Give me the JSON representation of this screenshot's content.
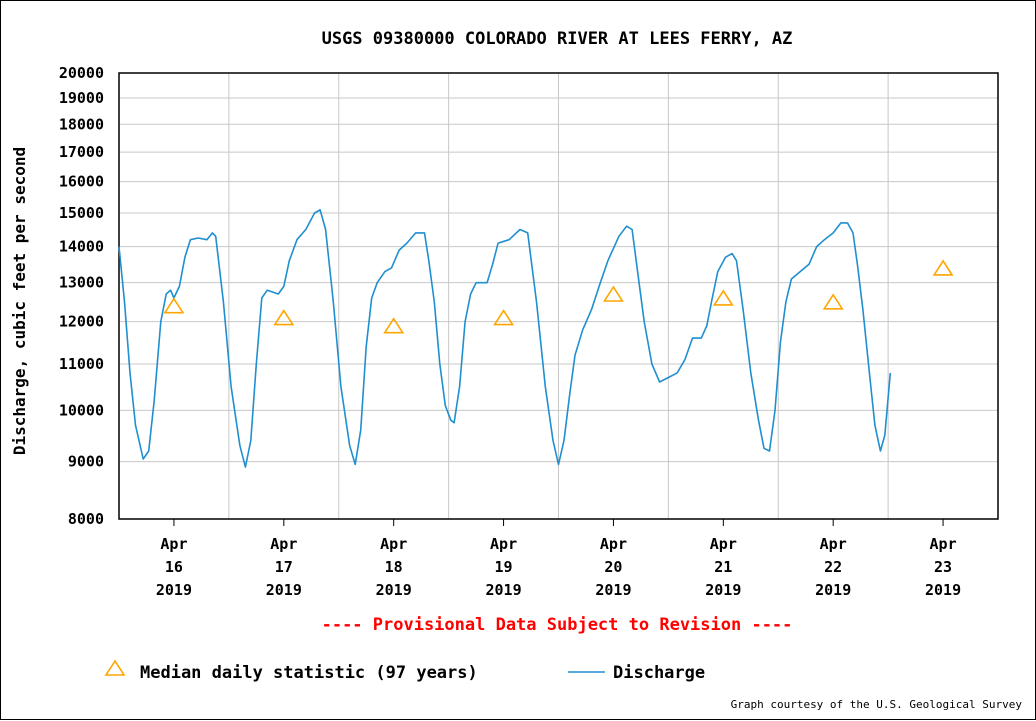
{
  "chart_data": {
    "type": "line",
    "title": "USGS 09380000 COLORADO RIVER AT LEES FERRY, AZ",
    "ylabel": "Discharge, cubic feet per second",
    "xlabel": "",
    "yscale": "log",
    "ylim": [
      8000,
      20000
    ],
    "yticks": [
      "8000",
      "9000",
      "10000",
      "11000",
      "12000",
      "13000",
      "14000",
      "15000",
      "16000",
      "17000",
      "18000",
      "19000",
      "20000"
    ],
    "xlim_days": [
      15.5,
      23.5
    ],
    "xticks": [
      {
        "day": 16,
        "lines": [
          "Apr",
          "16",
          "2019"
        ]
      },
      {
        "day": 17,
        "lines": [
          "Apr",
          "17",
          "2019"
        ]
      },
      {
        "day": 18,
        "lines": [
          "Apr",
          "18",
          "2019"
        ]
      },
      {
        "day": 19,
        "lines": [
          "Apr",
          "19",
          "2019"
        ]
      },
      {
        "day": 20,
        "lines": [
          "Apr",
          "20",
          "2019"
        ]
      },
      {
        "day": 21,
        "lines": [
          "Apr",
          "21",
          "2019"
        ]
      },
      {
        "day": 22,
        "lines": [
          "Apr",
          "22",
          "2019"
        ]
      },
      {
        "day": 23,
        "lines": [
          "Apr",
          "23",
          "2019"
        ]
      }
    ],
    "grid": true,
    "annotation": "---- Provisional Data Subject to Revision ----",
    "series": [
      {
        "name": "Discharge",
        "color": "#1f8fd0",
        "marker": "none",
        "points": [
          [
            15.5,
            14000
          ],
          [
            15.55,
            12500
          ],
          [
            15.6,
            10800
          ],
          [
            15.65,
            9700
          ],
          [
            15.72,
            9050
          ],
          [
            15.77,
            9200
          ],
          [
            15.82,
            10200
          ],
          [
            15.88,
            12000
          ],
          [
            15.93,
            12700
          ],
          [
            15.97,
            12800
          ],
          [
            16.0,
            12600
          ],
          [
            16.05,
            12900
          ],
          [
            16.1,
            13700
          ],
          [
            16.15,
            14200
          ],
          [
            16.22,
            14250
          ],
          [
            16.3,
            14200
          ],
          [
            16.35,
            14400
          ],
          [
            16.38,
            14300
          ],
          [
            16.45,
            12500
          ],
          [
            16.52,
            10500
          ],
          [
            16.6,
            9300
          ],
          [
            16.65,
            8900
          ],
          [
            16.7,
            9400
          ],
          [
            16.75,
            11000
          ],
          [
            16.8,
            12600
          ],
          [
            16.85,
            12800
          ],
          [
            16.95,
            12700
          ],
          [
            17.0,
            12900
          ],
          [
            17.05,
            13600
          ],
          [
            17.12,
            14200
          ],
          [
            17.2,
            14500
          ],
          [
            17.28,
            15000
          ],
          [
            17.33,
            15100
          ],
          [
            17.38,
            14500
          ],
          [
            17.45,
            12500
          ],
          [
            17.52,
            10500
          ],
          [
            17.6,
            9300
          ],
          [
            17.65,
            8950
          ],
          [
            17.7,
            9600
          ],
          [
            17.75,
            11400
          ],
          [
            17.8,
            12600
          ],
          [
            17.85,
            13000
          ],
          [
            17.92,
            13300
          ],
          [
            17.98,
            13400
          ],
          [
            18.05,
            13900
          ],
          [
            18.12,
            14100
          ],
          [
            18.2,
            14400
          ],
          [
            18.28,
            14400
          ],
          [
            18.32,
            13600
          ],
          [
            18.37,
            12500
          ],
          [
            18.42,
            11000
          ],
          [
            18.47,
            10100
          ],
          [
            18.52,
            9800
          ],
          [
            18.55,
            9750
          ],
          [
            18.6,
            10500
          ],
          [
            18.65,
            12000
          ],
          [
            18.7,
            12700
          ],
          [
            18.75,
            13000
          ],
          [
            18.85,
            13000
          ],
          [
            18.9,
            13500
          ],
          [
            18.95,
            14100
          ],
          [
            19.05,
            14200
          ],
          [
            19.15,
            14500
          ],
          [
            19.22,
            14400
          ],
          [
            19.3,
            12500
          ],
          [
            19.38,
            10500
          ],
          [
            19.45,
            9400
          ],
          [
            19.5,
            8950
          ],
          [
            19.55,
            9400
          ],
          [
            19.6,
            10300
          ],
          [
            19.65,
            11200
          ],
          [
            19.72,
            11800
          ],
          [
            19.8,
            12300
          ],
          [
            19.88,
            13000
          ],
          [
            19.95,
            13600
          ],
          [
            20.05,
            14300
          ],
          [
            20.12,
            14600
          ],
          [
            20.17,
            14500
          ],
          [
            20.22,
            13300
          ],
          [
            20.28,
            12000
          ],
          [
            20.35,
            11000
          ],
          [
            20.42,
            10600
          ],
          [
            20.5,
            10700
          ],
          [
            20.58,
            10800
          ],
          [
            20.65,
            11100
          ],
          [
            20.72,
            11600
          ],
          [
            20.8,
            11600
          ],
          [
            20.85,
            11900
          ],
          [
            20.9,
            12600
          ],
          [
            20.95,
            13300
          ],
          [
            21.02,
            13700
          ],
          [
            21.08,
            13800
          ],
          [
            21.12,
            13600
          ],
          [
            21.18,
            12300
          ],
          [
            21.25,
            10800
          ],
          [
            21.32,
            9800
          ],
          [
            21.37,
            9250
          ],
          [
            21.42,
            9200
          ],
          [
            21.47,
            10000
          ],
          [
            21.52,
            11500
          ],
          [
            21.57,
            12500
          ],
          [
            21.62,
            13100
          ],
          [
            21.7,
            13300
          ],
          [
            21.78,
            13500
          ],
          [
            21.85,
            14000
          ],
          [
            21.92,
            14200
          ],
          [
            22.0,
            14400
          ],
          [
            22.07,
            14700
          ],
          [
            22.13,
            14700
          ],
          [
            22.18,
            14400
          ],
          [
            22.22,
            13500
          ],
          [
            22.27,
            12300
          ],
          [
            22.33,
            10800
          ],
          [
            22.38,
            9700
          ],
          [
            22.43,
            9200
          ],
          [
            22.47,
            9500
          ],
          [
            22.52,
            10800
          ]
        ]
      },
      {
        "name": "Median daily statistic (97 years)",
        "color": "#ffa500",
        "marker": "triangle",
        "points": [
          [
            16.0,
            12400
          ],
          [
            17.0,
            12100
          ],
          [
            18.0,
            11900
          ],
          [
            19.0,
            12100
          ],
          [
            20.0,
            12700
          ],
          [
            21.0,
            12600
          ],
          [
            22.0,
            12500
          ],
          [
            23.0,
            13400
          ]
        ]
      }
    ]
  },
  "legend": {
    "items": [
      {
        "label": "Median daily statistic (97 years)",
        "color": "#ffa500",
        "marker": "triangle"
      },
      {
        "label": "Discharge",
        "color": "#1f8fd0",
        "marker": "line"
      }
    ]
  },
  "credit": "Graph courtesy of the U.S. Geological Survey"
}
